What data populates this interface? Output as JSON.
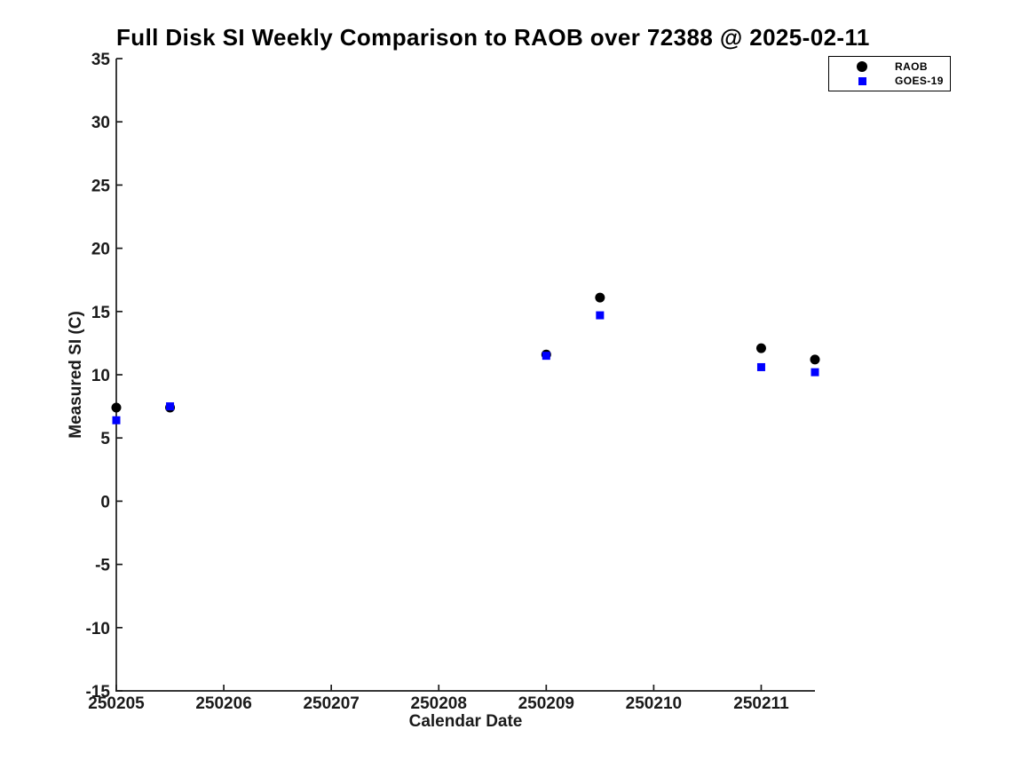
{
  "chart_data": {
    "type": "scatter",
    "title": "Full Disk SI Weekly Comparison to RAOB over 72388 @ 2025-02-11",
    "xlabel": "Calendar Date",
    "ylabel": "Measured SI (C)",
    "xlim": [
      250205,
      250211.5
    ],
    "ylim": [
      -15,
      35
    ],
    "xticks": [
      250205,
      250206,
      250207,
      250208,
      250209,
      250210,
      250211
    ],
    "yticks": [
      -15,
      -10,
      -5,
      0,
      5,
      10,
      15,
      20,
      25,
      30,
      35
    ],
    "grid": false,
    "axis_color": "#1a1a1a",
    "tick_direction": "in",
    "legend_position": "top-right-outside",
    "series": [
      {
        "name": "RAOB",
        "marker": "circle",
        "color": "#000000",
        "points": [
          [
            250205.0,
            7.4
          ],
          [
            250205.5,
            7.4
          ],
          [
            250209.0,
            11.6
          ],
          [
            250209.5,
            16.1
          ],
          [
            250211.0,
            12.1
          ],
          [
            250211.5,
            11.2
          ]
        ]
      },
      {
        "name": "GOES-19",
        "marker": "square",
        "color": "#0000ff",
        "points": [
          [
            250205.0,
            6.4
          ],
          [
            250205.5,
            7.5
          ],
          [
            250209.0,
            11.5
          ],
          [
            250209.5,
            14.7
          ],
          [
            250211.0,
            10.6
          ],
          [
            250211.5,
            10.2
          ]
        ]
      }
    ]
  }
}
